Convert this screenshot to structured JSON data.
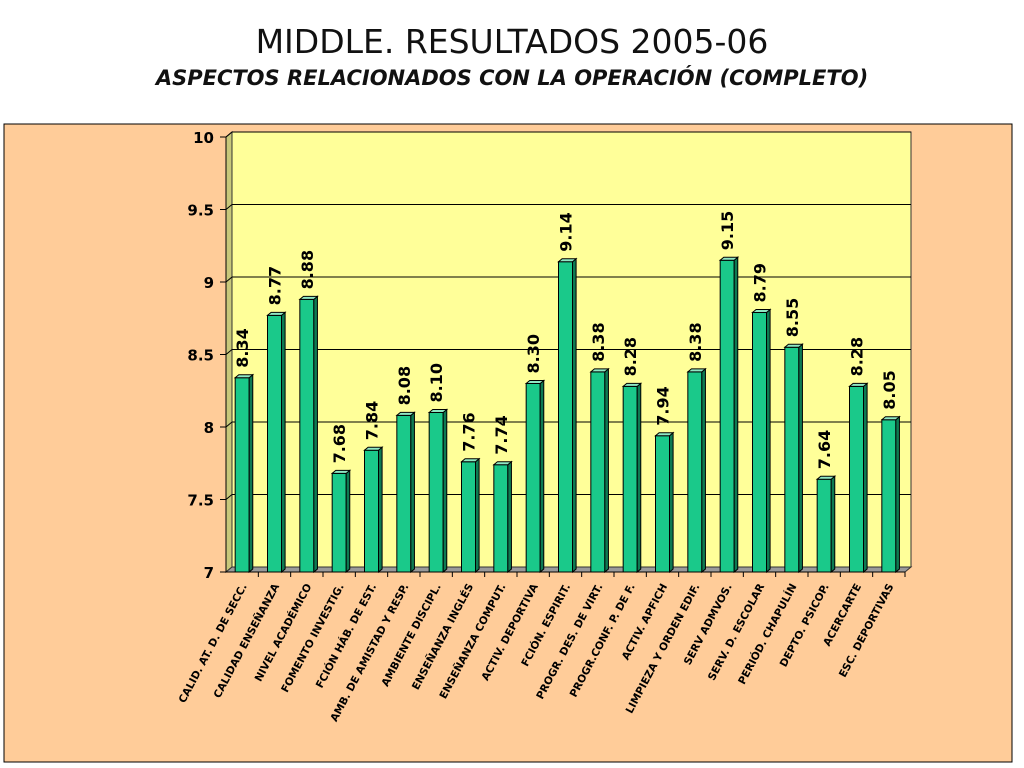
{
  "page": {
    "title": "MIDDLE. RESULTADOS 2005-06",
    "subtitle": "ASPECTOS RELACIONADOS CON LA OPERACIÓN  (COMPLETO)"
  },
  "colors": {
    "background_area": "#FFCC99",
    "plot_area": "#FFFF99",
    "bar_front": "#1AC98A",
    "bar_side": "#0E7A52",
    "bar_top": "#8FE8C4",
    "outline": "#000000"
  },
  "chart_data": {
    "type": "bar",
    "ylim": [
      7,
      10
    ],
    "yticks": [
      "7",
      "7.5",
      "8",
      "8.5",
      "9",
      "9.5",
      "10"
    ],
    "grid": true,
    "categories": [
      "CALID. AT. D. DE SECC.",
      "CALIDAD ENSEÑANZA",
      "NIVEL ACADÉMICO",
      "FOMENTO INVESTIG.",
      "FCIÓN HÁB. DE EST.",
      "AMB. DE AMISTAD Y RESP.",
      "AMBIENTE DISCIPL.",
      "ENSEÑANZA INGLÉS",
      "ENSEÑANZA COMPUT.",
      "ACTIV. DEPORTIVA",
      "FCIÓN. ESPIRIT.",
      "PROGR. DES. DE VIRT.",
      "PROGR.CONF. P. DE F.",
      "ACTIV. APFICH",
      "LIMPIEZA Y ORDEN EDIF.",
      "SERV ADMVOS.",
      "SERV. D. ESCOLAR",
      "PERIÓD. CHAPULÍN",
      "DEPTO.  PSICOP.",
      "ACERCARTE",
      "ESC. DEPORTIVAS"
    ],
    "values": [
      8.34,
      8.77,
      8.88,
      7.68,
      7.84,
      8.08,
      8.1,
      7.76,
      7.74,
      8.3,
      9.14,
      8.38,
      8.28,
      7.94,
      8.38,
      9.15,
      8.79,
      8.55,
      7.64,
      8.28,
      8.05
    ],
    "data_labels": [
      "8.34",
      "8.77",
      "8.88",
      "7.68",
      "7.84",
      "8.08",
      "8.10",
      "7.76",
      "7.74",
      "8.30",
      "9.14",
      "8.38",
      "8.28",
      "7.94",
      "8.38",
      "9.15",
      "8.79",
      "8.55",
      "7.64",
      "8.28",
      "8.05"
    ]
  }
}
